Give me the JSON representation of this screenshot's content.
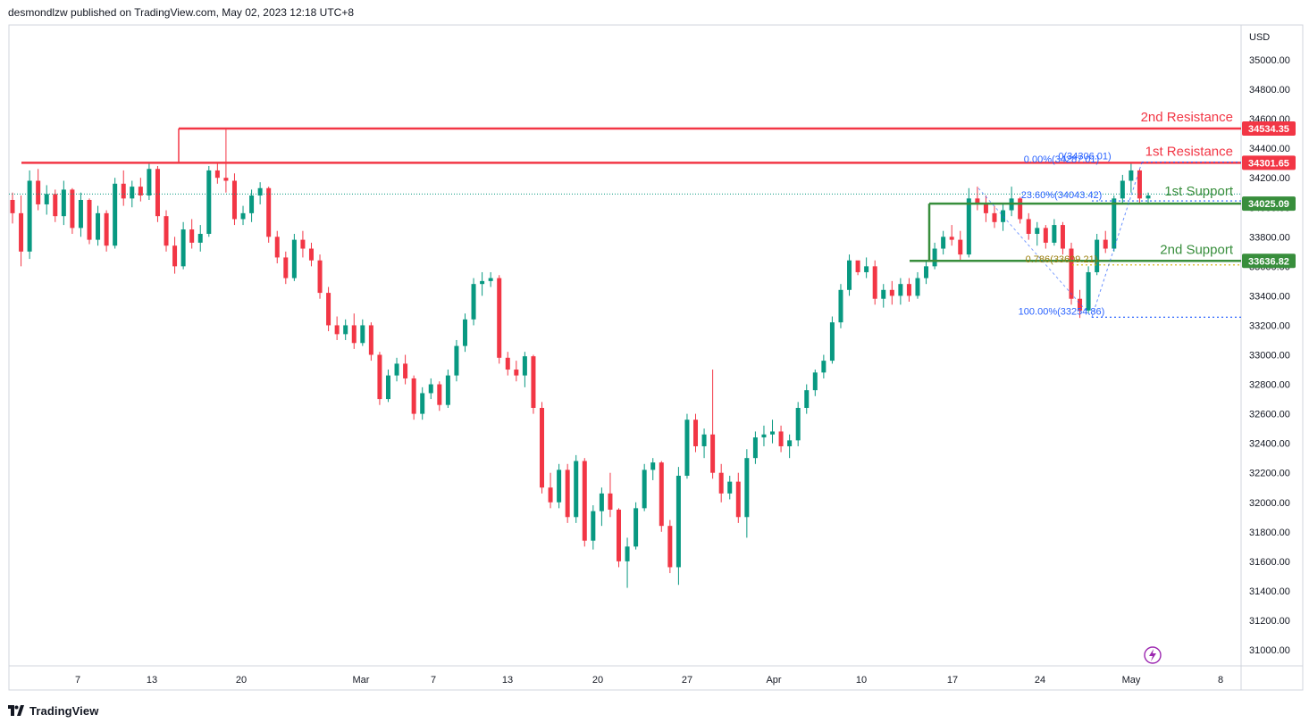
{
  "header": {
    "text": "desmondlzw published on TradingView.com, May 02, 2023 12:18 UTC+8"
  },
  "footer": {
    "brand": "TradingView"
  },
  "colors": {
    "up": "#089981",
    "down": "#f23645",
    "resistance": "#f23645",
    "support": "#388e3c",
    "fib": "#2962ff",
    "fib_gold": "#d4b106",
    "axis_border": "#d1d4dc",
    "flash": "#9c27b0"
  },
  "chart_data": {
    "type": "candlestick",
    "currency": "USD",
    "y_ticks": [
      31000,
      31200,
      31400,
      31600,
      31800,
      32000,
      32200,
      32400,
      32600,
      32800,
      33000,
      33200,
      33400,
      33600,
      33800,
      34000,
      34200,
      34400,
      34600,
      34800,
      35000
    ],
    "y_tick_labels": [
      "31000.00",
      "31200.00",
      "31400.00",
      "31600.00",
      "31800.00",
      "32000.00",
      "32200.00",
      "32400.00",
      "32600.00",
      "32800.00",
      "33000.00",
      "33200.00",
      "33400.00",
      "33600.00",
      "33800.00",
      "34000.00",
      "34200.00",
      "34400.00",
      "34600.00",
      "34800.00",
      "35000.00"
    ],
    "ylim": [
      30900,
      35250
    ],
    "x_labels": [
      "7",
      "13",
      "20",
      "Mar",
      "7",
      "13",
      "20",
      "27",
      "Apr",
      "10",
      "17",
      "24",
      "May",
      "8"
    ],
    "levels": [
      {
        "name": "2nd Resistance",
        "value": 34534.35,
        "label": "34534.35",
        "kind": "resistance"
      },
      {
        "name": "1st Resistance",
        "value": 34301.65,
        "label": "34301.65",
        "kind": "resistance"
      },
      {
        "name": "1st Support",
        "value": 34025.09,
        "label": "34025.09",
        "kind": "support"
      },
      {
        "name": "2nd Support",
        "value": 33636.82,
        "label": "33636.82",
        "kind": "support"
      }
    ],
    "fib_labels": [
      {
        "text": "0(34306.01)",
        "value": 34306.01
      },
      {
        "text": "0.00%(34287.01)",
        "value": 34287.01
      },
      {
        "text": "23.60%(34043.42)",
        "value": 34043.42
      },
      {
        "text": "0.786(33609.21)",
        "value": 33609.21
      },
      {
        "text": "100.00%(33254.86)",
        "value": 33254.86
      }
    ],
    "series": [
      {
        "values": [
          [
            34050,
            34100,
            33890,
            33960
          ],
          [
            33960,
            34080,
            33600,
            33700
          ],
          [
            33700,
            34250,
            33650,
            34180
          ],
          [
            34180,
            34260,
            33980,
            34020
          ],
          [
            34020,
            34150,
            33950,
            34090
          ],
          [
            34090,
            34120,
            33900,
            33940
          ],
          [
            33940,
            34180,
            33880,
            34120
          ],
          [
            34120,
            34130,
            33820,
            33860
          ],
          [
            33860,
            34100,
            33800,
            34050
          ],
          [
            34050,
            34060,
            33750,
            33780
          ],
          [
            33780,
            34010,
            33740,
            33960
          ],
          [
            33960,
            33980,
            33700,
            33740
          ],
          [
            33740,
            34200,
            33720,
            34160
          ],
          [
            34160,
            34250,
            34010,
            34060
          ],
          [
            34060,
            34180,
            34000,
            34140
          ],
          [
            34140,
            34200,
            34040,
            34080
          ],
          [
            34080,
            34300,
            34050,
            34260
          ],
          [
            34260,
            34280,
            33900,
            33940
          ],
          [
            33940,
            33980,
            33700,
            33740
          ],
          [
            33740,
            33800,
            33550,
            33600
          ],
          [
            33600,
            33900,
            33580,
            33850
          ],
          [
            33850,
            33920,
            33720,
            33760
          ],
          [
            33760,
            33880,
            33700,
            33820
          ],
          [
            33820,
            34280,
            33800,
            34250
          ],
          [
            34250,
            34300,
            34160,
            34200
          ],
          [
            34200,
            34534,
            34100,
            34180
          ],
          [
            34180,
            34230,
            33880,
            33920
          ],
          [
            33920,
            34010,
            33880,
            33960
          ],
          [
            33960,
            34120,
            33900,
            34080
          ],
          [
            34080,
            34170,
            34020,
            34130
          ],
          [
            34130,
            34140,
            33760,
            33800
          ],
          [
            33800,
            33840,
            33620,
            33660
          ],
          [
            33660,
            33700,
            33480,
            33520
          ],
          [
            33520,
            33820,
            33500,
            33780
          ],
          [
            33780,
            33840,
            33660,
            33720
          ],
          [
            33720,
            33760,
            33600,
            33640
          ],
          [
            33640,
            33680,
            33380,
            33420
          ],
          [
            33420,
            33460,
            33160,
            33200
          ],
          [
            33200,
            33260,
            33100,
            33140
          ],
          [
            33140,
            33240,
            33100,
            33200
          ],
          [
            33200,
            33280,
            33040,
            33080
          ],
          [
            33080,
            33240,
            33060,
            33200
          ],
          [
            33200,
            33220,
            32960,
            33000
          ],
          [
            33000,
            33020,
            32660,
            32700
          ],
          [
            32700,
            32900,
            32680,
            32860
          ],
          [
            32860,
            32980,
            32820,
            32940
          ],
          [
            32940,
            33000,
            32800,
            32840
          ],
          [
            32840,
            32860,
            32560,
            32600
          ],
          [
            32600,
            32780,
            32560,
            32740
          ],
          [
            32740,
            32840,
            32700,
            32800
          ],
          [
            32800,
            32820,
            32620,
            32660
          ],
          [
            32660,
            32900,
            32640,
            32860
          ],
          [
            32860,
            33100,
            32820,
            33060
          ],
          [
            33060,
            33280,
            33020,
            33240
          ],
          [
            33240,
            33520,
            33200,
            33480
          ],
          [
            33480,
            33560,
            33400,
            33500
          ],
          [
            33500,
            33560,
            33460,
            33520
          ],
          [
            33520,
            33540,
            32940,
            32980
          ],
          [
            32980,
            33020,
            32860,
            32900
          ],
          [
            32900,
            32960,
            32820,
            32860
          ],
          [
            32860,
            33020,
            32780,
            32990
          ],
          [
            32990,
            33000,
            32600,
            32640
          ],
          [
            32640,
            32680,
            32060,
            32100
          ],
          [
            32100,
            32200,
            31960,
            32000
          ],
          [
            32000,
            32260,
            31960,
            32220
          ],
          [
            32220,
            32260,
            31860,
            31900
          ],
          [
            31900,
            32320,
            31860,
            32280
          ],
          [
            32280,
            32300,
            31700,
            31740
          ],
          [
            31740,
            31980,
            31680,
            31940
          ],
          [
            31940,
            32100,
            31840,
            32060
          ],
          [
            32060,
            32200,
            31900,
            31950
          ],
          [
            31950,
            31960,
            31560,
            31600
          ],
          [
            31600,
            31760,
            31420,
            31700
          ],
          [
            31700,
            32000,
            31680,
            31960
          ],
          [
            31960,
            32260,
            31940,
            32220
          ],
          [
            32220,
            32300,
            32150,
            32270
          ],
          [
            32270,
            32280,
            31800,
            31840
          ],
          [
            31840,
            31880,
            31520,
            31560
          ],
          [
            31560,
            32240,
            31440,
            32180
          ],
          [
            32180,
            32600,
            32160,
            32560
          ],
          [
            32560,
            32600,
            32340,
            32380
          ],
          [
            32380,
            32500,
            32300,
            32460
          ],
          [
            32460,
            32900,
            32160,
            32200
          ],
          [
            32200,
            32260,
            32000,
            32060
          ],
          [
            32060,
            32180,
            32020,
            32140
          ],
          [
            32140,
            32200,
            31860,
            31900
          ],
          [
            31900,
            32360,
            31760,
            32300
          ],
          [
            32300,
            32480,
            32260,
            32440
          ],
          [
            32440,
            32520,
            32380,
            32460
          ],
          [
            32460,
            32560,
            32400,
            32480
          ],
          [
            32480,
            32520,
            32340,
            32380
          ],
          [
            32380,
            32460,
            32300,
            32420
          ],
          [
            32420,
            32680,
            32380,
            32640
          ],
          [
            32640,
            32800,
            32600,
            32760
          ],
          [
            32760,
            32900,
            32720,
            32880
          ],
          [
            32880,
            33000,
            32840,
            32960
          ],
          [
            32960,
            33260,
            32940,
            33220
          ],
          [
            33220,
            33480,
            33180,
            33440
          ],
          [
            33440,
            33680,
            33400,
            33640
          ],
          [
            33640,
            33600,
            33540,
            33560
          ],
          [
            33560,
            33660,
            33520,
            33600
          ],
          [
            33600,
            33640,
            33340,
            33380
          ],
          [
            33380,
            33480,
            33320,
            33440
          ],
          [
            33440,
            33500,
            33340,
            33400
          ],
          [
            33400,
            33520,
            33340,
            33480
          ],
          [
            33480,
            33520,
            33360,
            33400
          ],
          [
            33400,
            33560,
            33380,
            33520
          ],
          [
            33520,
            33640,
            33480,
            33600
          ],
          [
            33600,
            33760,
            33580,
            33720
          ],
          [
            33720,
            33840,
            33680,
            33800
          ],
          [
            33800,
            33880,
            33740,
            33780
          ],
          [
            33780,
            33840,
            33640,
            33680
          ],
          [
            33680,
            34130,
            33660,
            34060
          ],
          [
            34060,
            34140,
            33980,
            34020
          ],
          [
            34020,
            34080,
            33900,
            33960
          ],
          [
            33960,
            34010,
            33860,
            33900
          ],
          [
            33900,
            34020,
            33840,
            33980
          ],
          [
            33980,
            34140,
            33940,
            34060
          ],
          [
            34060,
            34070,
            33890,
            33920
          ],
          [
            33920,
            33960,
            33780,
            33820
          ],
          [
            33820,
            33900,
            33740,
            33860
          ],
          [
            33860,
            33880,
            33720,
            33760
          ],
          [
            33760,
            33920,
            33740,
            33880
          ],
          [
            33880,
            33900,
            33680,
            33720
          ],
          [
            33720,
            33760,
            33340,
            33380
          ],
          [
            33380,
            33440,
            33250,
            33300
          ],
          [
            33300,
            33600,
            33280,
            33560
          ],
          [
            33560,
            33820,
            33540,
            33780
          ],
          [
            33780,
            33840,
            33690,
            33720
          ],
          [
            33720,
            34080,
            33700,
            34060
          ],
          [
            34060,
            34220,
            34020,
            34180
          ],
          [
            34180,
            34306,
            34100,
            34250
          ],
          [
            34250,
            34260,
            34020,
            34060
          ],
          [
            34060,
            34100,
            34020,
            34080
          ]
        ]
      }
    ]
  }
}
